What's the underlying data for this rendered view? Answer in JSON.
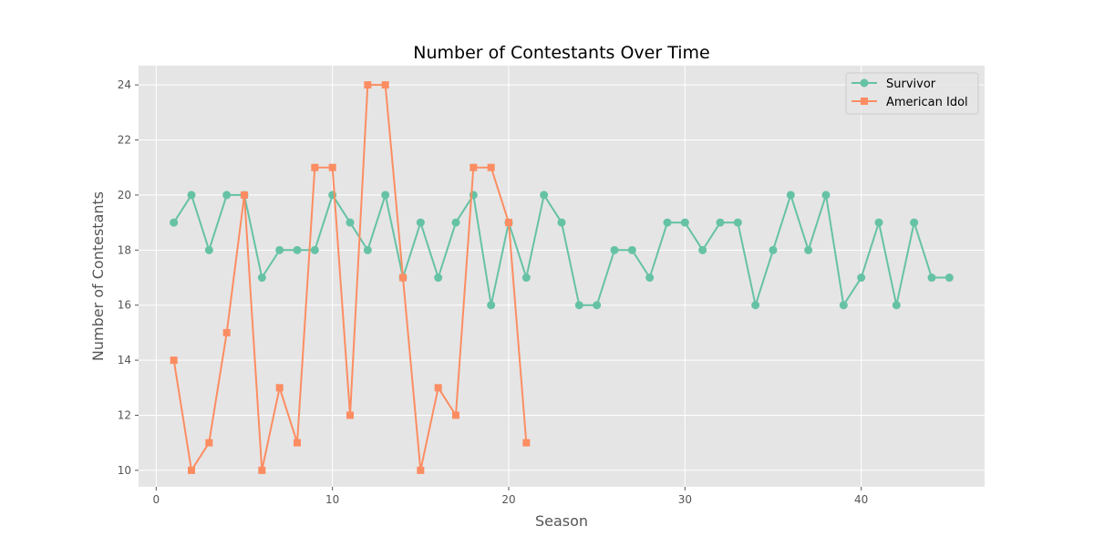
{
  "chart_data": {
    "type": "line",
    "title": "Number of Contestants Over Time",
    "xlabel": "Season",
    "ylabel": "Number of Contestants",
    "xlim": [
      -1,
      47
    ],
    "ylim": [
      9.4,
      24.7
    ],
    "xticks": [
      0,
      10,
      20,
      30,
      40
    ],
    "yticks": [
      10,
      12,
      14,
      16,
      18,
      20,
      22,
      24
    ],
    "grid": true,
    "legend_position": "top-right",
    "series": [
      {
        "name": "Survivor",
        "color": "#66c2a5",
        "marker": "circle",
        "x": [
          1,
          2,
          3,
          4,
          5,
          6,
          7,
          8,
          9,
          10,
          11,
          12,
          13,
          14,
          15,
          16,
          17,
          18,
          19,
          20,
          21,
          22,
          23,
          24,
          25,
          26,
          27,
          28,
          29,
          30,
          31,
          32,
          33,
          34,
          35,
          36,
          37,
          38,
          39,
          40,
          41,
          42,
          43,
          44,
          45
        ],
        "y": [
          19,
          20,
          18,
          20,
          20,
          17,
          18,
          18,
          18,
          20,
          19,
          18,
          20,
          17,
          19,
          17,
          19,
          20,
          16,
          19,
          17,
          20,
          19,
          16,
          16,
          18,
          18,
          17,
          19,
          19,
          18,
          19,
          19,
          16,
          18,
          20,
          18,
          20,
          16,
          17,
          19,
          16,
          19,
          17,
          17
        ]
      },
      {
        "name": "American Idol",
        "color": "#fc8d62",
        "marker": "square",
        "x": [
          1,
          2,
          3,
          4,
          5,
          6,
          7,
          8,
          9,
          10,
          11,
          12,
          13,
          14,
          15,
          16,
          17,
          18,
          19,
          20,
          21
        ],
        "y": [
          14,
          10,
          11,
          15,
          20,
          10,
          13,
          11,
          21,
          21,
          12,
          24,
          24,
          17,
          10,
          13,
          12,
          21,
          21,
          19,
          11
        ]
      }
    ]
  }
}
